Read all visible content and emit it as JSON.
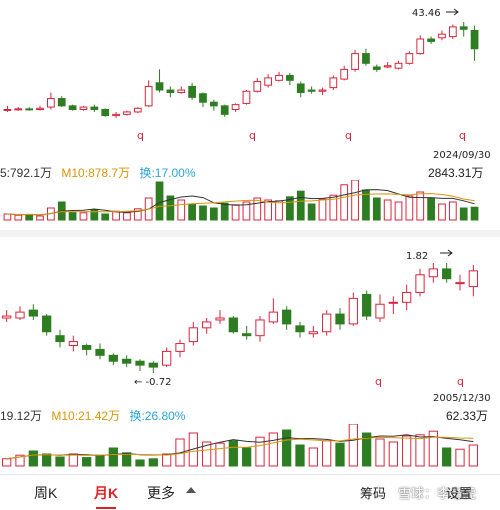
{
  "colors": {
    "up": "#d7263d",
    "down": "#2f7d22",
    "accent": "#e02020",
    "ma_white": "#333333",
    "ma_orange": "#d9950b",
    "ma_blue": "#2aa5d6"
  },
  "weekly": {
    "high_label": "43.46",
    "date": "2024/09/30",
    "marker_glyph": "q",
    "vol_ma5": "5:792.1万",
    "vol_ma10": "M10:878.7万",
    "turnover": "换:17.00%",
    "vol_max": "2843.31万",
    "candles": [
      [
        1.0,
        1.0,
        1.3,
        0.8
      ],
      [
        1.0,
        1.05,
        1.2,
        0.9
      ],
      [
        1.05,
        1.0,
        1.2,
        0.9
      ],
      [
        1.0,
        1.1,
        1.3,
        0.9
      ],
      [
        1.2,
        1.9,
        2.4,
        1.0
      ],
      [
        1.9,
        1.3,
        2.1,
        1.2
      ],
      [
        1.3,
        1.0,
        1.4,
        0.9
      ],
      [
        1.0,
        1.2,
        1.3,
        0.9
      ],
      [
        1.2,
        1.0,
        1.4,
        0.8
      ],
      [
        1.0,
        0.5,
        1.1,
        0.4
      ],
      [
        0.5,
        0.6,
        0.8,
        0.3
      ],
      [
        0.6,
        0.8,
        0.9,
        0.5
      ],
      [
        0.8,
        1.1,
        1.2,
        0.7
      ],
      [
        1.3,
        2.9,
        3.4,
        1.2
      ],
      [
        3.2,
        2.6,
        4.3,
        2.4
      ],
      [
        2.6,
        2.4,
        2.9,
        2.0
      ],
      [
        2.4,
        2.6,
        2.9,
        2.3
      ],
      [
        2.9,
        2.0,
        3.2,
        1.8
      ],
      [
        2.3,
        1.6,
        2.4,
        1.2
      ],
      [
        1.6,
        1.3,
        1.8,
        0.9
      ],
      [
        1.3,
        0.6,
        1.4,
        0.4
      ],
      [
        1.0,
        1.4,
        1.5,
        0.8
      ],
      [
        1.5,
        2.5,
        2.6,
        1.4
      ],
      [
        2.5,
        3.3,
        3.6,
        2.4
      ],
      [
        3.0,
        3.6,
        3.9,
        2.8
      ],
      [
        3.4,
        3.8,
        4.1,
        3.3
      ],
      [
        3.8,
        3.4,
        4.0,
        3.0
      ],
      [
        3.1,
        2.4,
        3.3,
        2.0
      ],
      [
        2.6,
        2.5,
        2.9,
        2.3
      ],
      [
        2.5,
        2.6,
        2.8,
        2.2
      ],
      [
        2.8,
        3.6,
        3.8,
        2.6
      ],
      [
        3.5,
        4.3,
        4.6,
        3.4
      ],
      [
        4.3,
        5.6,
        5.9,
        4.1
      ],
      [
        5.6,
        4.8,
        6.0,
        4.6
      ],
      [
        4.5,
        4.3,
        4.7,
        4.1
      ],
      [
        4.5,
        4.6,
        4.9,
        4.4
      ],
      [
        4.4,
        4.8,
        5.0,
        4.3
      ],
      [
        4.8,
        5.6,
        5.8,
        4.7
      ],
      [
        5.6,
        6.8,
        7.1,
        5.5
      ],
      [
        6.8,
        6.6,
        7.0,
        6.4
      ],
      [
        6.9,
        7.2,
        7.5,
        6.7
      ],
      [
        7.0,
        7.8,
        8.0,
        6.8
      ],
      [
        7.8,
        7.6,
        8.2,
        7.0
      ],
      [
        7.5,
        6.0,
        7.9,
        5.0
      ]
    ],
    "volumes": [
      0.15,
      0.12,
      0.14,
      0.1,
      0.3,
      0.45,
      0.2,
      0.18,
      0.25,
      0.15,
      0.22,
      0.18,
      0.28,
      0.55,
      0.95,
      0.6,
      0.5,
      0.4,
      0.35,
      0.3,
      0.42,
      0.38,
      0.45,
      0.55,
      0.5,
      0.48,
      0.58,
      0.72,
      0.4,
      0.52,
      0.62,
      0.88,
      1.0,
      0.75,
      0.55,
      0.5,
      0.45,
      0.6,
      0.7,
      0.55,
      0.4,
      0.45,
      0.3,
      0.32
    ]
  },
  "monthly": {
    "high_label": "1.82",
    "low_label": "← -0.72",
    "date": "2005/12/30",
    "marker_glyph": "q",
    "vol_ma5": "19.12万",
    "vol_ma10": "M10:21.42万",
    "turnover": "换:26.80%",
    "vol_max": "62.33万",
    "candles": [
      [
        3.2,
        3.3,
        3.6,
        3.0
      ],
      [
        3.2,
        3.5,
        3.8,
        3.1
      ],
      [
        3.6,
        3.3,
        3.9,
        3.1
      ],
      [
        3.3,
        2.5,
        3.4,
        2.3
      ],
      [
        2.3,
        2.0,
        2.6,
        1.7
      ],
      [
        1.8,
        2.0,
        2.3,
        1.5
      ],
      [
        1.8,
        1.6,
        1.9,
        1.3
      ],
      [
        1.6,
        1.3,
        1.9,
        1.1
      ],
      [
        1.3,
        1.0,
        1.4,
        0.8
      ],
      [
        1.1,
        0.9,
        1.3,
        0.7
      ],
      [
        1.0,
        0.8,
        1.1,
        0.5
      ],
      [
        0.9,
        0.7,
        1.0,
        0.4
      ],
      [
        0.8,
        1.5,
        1.7,
        0.7
      ],
      [
        1.5,
        1.9,
        2.1,
        1.2
      ],
      [
        2.0,
        2.7,
        3.0,
        1.8
      ],
      [
        2.7,
        3.0,
        3.2,
        2.4
      ],
      [
        3.1,
        3.2,
        3.6,
        2.9
      ],
      [
        3.2,
        2.5,
        3.3,
        2.4
      ],
      [
        2.4,
        2.3,
        2.8,
        2.1
      ],
      [
        2.3,
        3.1,
        3.3,
        2.0
      ],
      [
        3.0,
        3.5,
        4.2,
        2.9
      ],
      [
        3.6,
        2.9,
        3.8,
        2.6
      ],
      [
        2.8,
        2.5,
        3.0,
        2.2
      ],
      [
        2.4,
        2.5,
        2.8,
        2.2
      ],
      [
        2.5,
        3.4,
        3.6,
        2.3
      ],
      [
        3.4,
        2.9,
        3.7,
        2.6
      ],
      [
        2.9,
        4.2,
        4.5,
        2.8
      ],
      [
        4.4,
        3.3,
        4.6,
        3.1
      ],
      [
        3.2,
        3.9,
        4.4,
        3.0
      ],
      [
        4.0,
        4.0,
        4.3,
        3.4
      ],
      [
        4.0,
        4.5,
        4.9,
        3.6
      ],
      [
        4.5,
        5.4,
        5.7,
        4.3
      ],
      [
        5.3,
        5.7,
        6.0,
        5.0
      ],
      [
        5.7,
        5.2,
        6.0,
        5.0
      ],
      [
        5.0,
        5.0,
        5.4,
        4.6
      ],
      [
        4.8,
        5.6,
        5.9,
        4.3
      ]
    ],
    "volumes": [
      0.12,
      0.18,
      0.25,
      0.2,
      0.15,
      0.2,
      0.14,
      0.18,
      0.3,
      0.22,
      0.1,
      0.12,
      0.2,
      0.45,
      0.55,
      0.4,
      0.38,
      0.42,
      0.3,
      0.48,
      0.55,
      0.6,
      0.35,
      0.3,
      0.42,
      0.38,
      0.7,
      0.55,
      0.45,
      0.4,
      0.5,
      0.52,
      0.58,
      0.3,
      0.28,
      0.35
    ]
  },
  "tabs": {
    "weekly": "周K",
    "monthly": "月K",
    "more": "更多"
  },
  "toolbar": {
    "chips": "筹码",
    "watermark": "雪球：李老虎",
    "settings": "设置"
  }
}
